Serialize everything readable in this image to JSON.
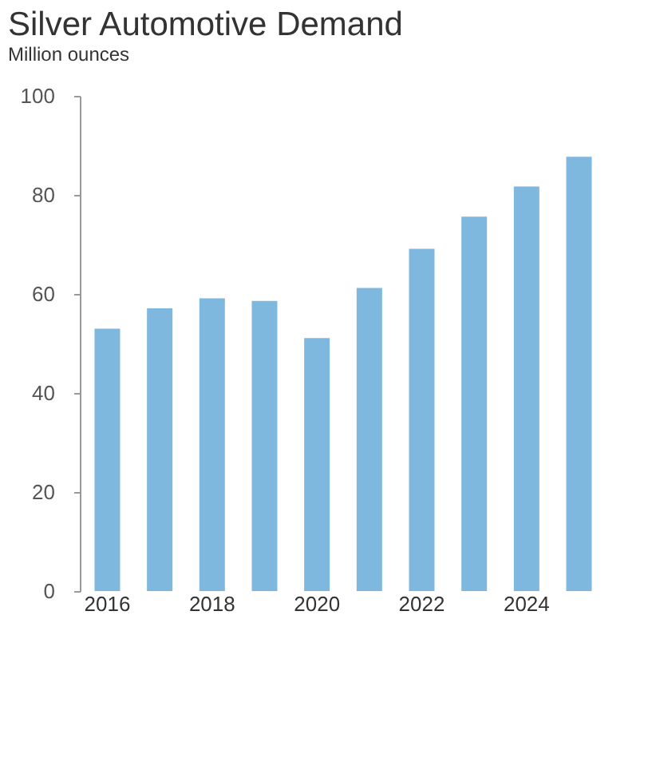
{
  "chart_data": {
    "type": "bar",
    "title": "Silver Automotive Demand",
    "ylabel": "Million ounces",
    "categories": [
      "2016",
      null,
      "2018",
      null,
      "2020",
      null,
      "2022",
      null,
      "2024",
      null
    ],
    "values": [
      53,
      57.1,
      59.1,
      58.6,
      51.1,
      61.2,
      69.1,
      75.6,
      81.7,
      87.7
    ],
    "color": "#7fb8df",
    "ylim": [
      0,
      100
    ],
    "yticks": [
      0,
      20,
      40,
      60,
      80,
      100
    ],
    "grid": false
  }
}
